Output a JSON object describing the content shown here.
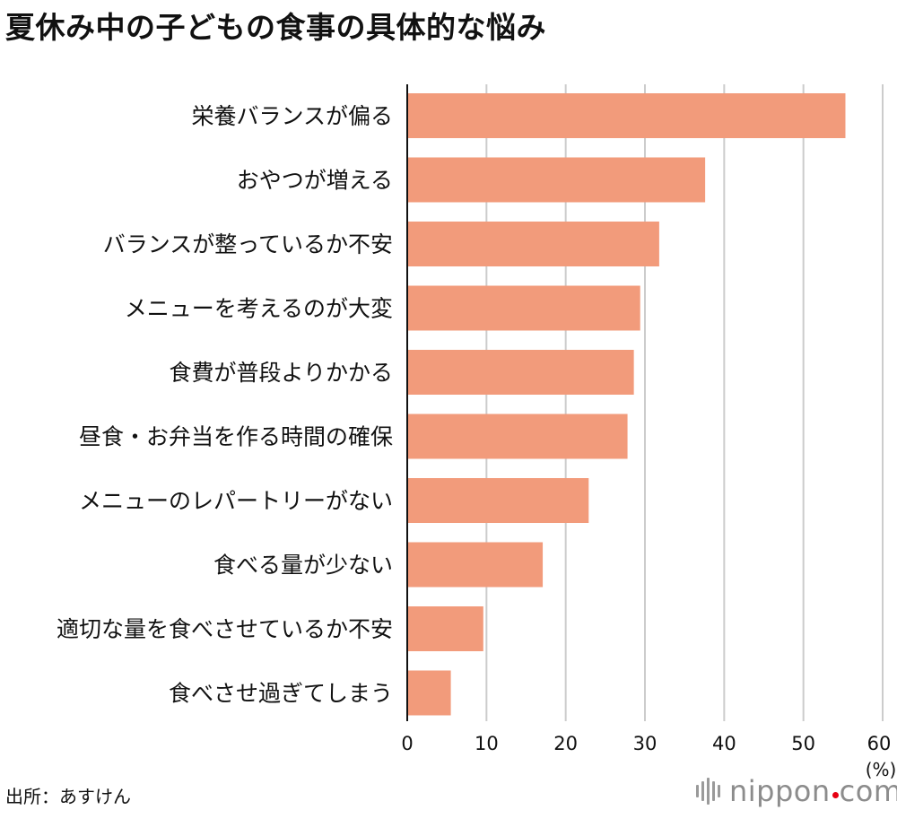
{
  "title": "夏休み中の子どもの食事の具体的な悩み",
  "source": "出所：あすけん",
  "logo": {
    "brand": "nippon",
    "tld": "com",
    "dot_color": "#e60012"
  },
  "chart_data": {
    "type": "bar",
    "orientation": "horizontal",
    "categories": [
      "栄養バランスが偏る",
      "おやつが増える",
      "バランスが整っているか不安",
      "メニューを考えるのが大変",
      "食費が普段よりかかる",
      "昼食・お弁当を作る時間の確保",
      "メニューのレパートリーがない",
      "食べる量が少ない",
      "適切な量を食べさせているか不安",
      "食べさせ過ぎてしまう"
    ],
    "values": [
      55.3,
      37.6,
      31.8,
      29.4,
      28.6,
      27.8,
      22.9,
      17.1,
      9.6,
      5.5
    ],
    "xlim": [
      0,
      60
    ],
    "xticks": [
      0,
      10,
      20,
      30,
      40,
      50,
      60
    ],
    "unit_label": "(%)",
    "grid": true,
    "bar_color": "#f29b7b",
    "grid_color": "#cccccc"
  }
}
